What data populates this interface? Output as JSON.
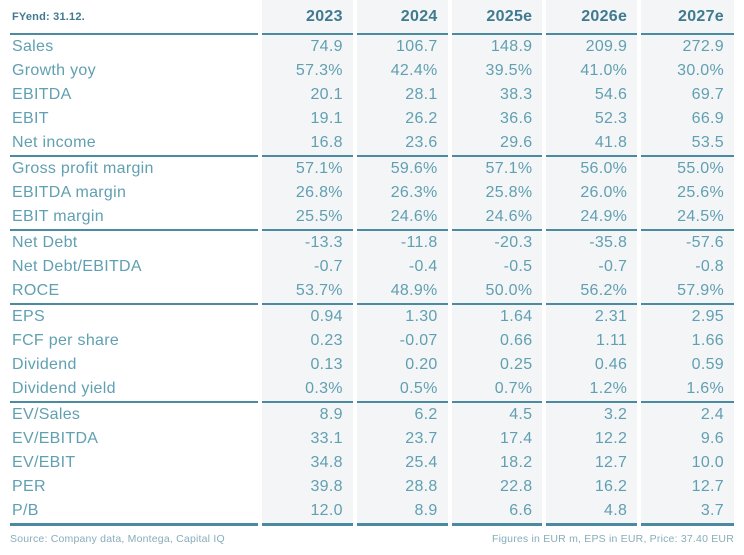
{
  "chart_data": {
    "type": "table",
    "corner_label": "FYend: 31.12.",
    "columns": [
      "2023",
      "2024",
      "2025e",
      "2026e",
      "2027e"
    ],
    "sections": [
      {
        "rows": [
          {
            "label": "Sales",
            "values": [
              "74.9",
              "106.7",
              "148.9",
              "209.9",
              "272.9"
            ]
          },
          {
            "label": "Growth yoy",
            "values": [
              "57.3%",
              "42.4%",
              "39.5%",
              "41.0%",
              "30.0%"
            ]
          },
          {
            "label": "EBITDA",
            "values": [
              "20.1",
              "28.1",
              "38.3",
              "54.6",
              "69.7"
            ]
          },
          {
            "label": "EBIT",
            "values": [
              "19.1",
              "26.2",
              "36.6",
              "52.3",
              "66.9"
            ]
          },
          {
            "label": "Net income",
            "values": [
              "16.8",
              "23.6",
              "29.6",
              "41.8",
              "53.5"
            ]
          }
        ]
      },
      {
        "rows": [
          {
            "label": "Gross profit margin",
            "values": [
              "57.1%",
              "59.6%",
              "57.1%",
              "56.0%",
              "55.0%"
            ]
          },
          {
            "label": "EBITDA margin",
            "values": [
              "26.8%",
              "26.3%",
              "25.8%",
              "26.0%",
              "25.6%"
            ]
          },
          {
            "label": "EBIT margin",
            "values": [
              "25.5%",
              "24.6%",
              "24.6%",
              "24.9%",
              "24.5%"
            ]
          }
        ]
      },
      {
        "rows": [
          {
            "label": "Net Debt",
            "values": [
              "-13.3",
              "-11.8",
              "-20.3",
              "-35.8",
              "-57.6"
            ]
          },
          {
            "label": "Net Debt/EBITDA",
            "values": [
              "-0.7",
              "-0.4",
              "-0.5",
              "-0.7",
              "-0.8"
            ]
          },
          {
            "label": "ROCE",
            "values": [
              "53.7%",
              "48.9%",
              "50.0%",
              "56.2%",
              "57.9%"
            ]
          }
        ]
      },
      {
        "rows": [
          {
            "label": "EPS",
            "values": [
              "0.94",
              "1.30",
              "1.64",
              "2.31",
              "2.95"
            ]
          },
          {
            "label": "FCF per share",
            "values": [
              "0.23",
              "-0.07",
              "0.66",
              "1.11",
              "1.66"
            ]
          },
          {
            "label": "Dividend",
            "values": [
              "0.13",
              "0.20",
              "0.25",
              "0.46",
              "0.59"
            ]
          },
          {
            "label": "Dividend yield",
            "values": [
              "0.3%",
              "0.5%",
              "0.7%",
              "1.2%",
              "1.6%"
            ]
          }
        ]
      },
      {
        "rows": [
          {
            "label": "EV/Sales",
            "values": [
              "8.9",
              "6.2",
              "4.5",
              "3.2",
              "2.4"
            ]
          },
          {
            "label": "EV/EBITDA",
            "values": [
              "33.1",
              "23.7",
              "17.4",
              "12.2",
              "9.6"
            ]
          },
          {
            "label": "EV/EBIT",
            "values": [
              "34.8",
              "25.4",
              "18.2",
              "12.7",
              "10.0"
            ]
          },
          {
            "label": "PER",
            "values": [
              "39.8",
              "28.8",
              "22.8",
              "16.2",
              "12.7"
            ]
          },
          {
            "label": "P/B",
            "values": [
              "12.0",
              "8.9",
              "6.6",
              "4.8",
              "3.7"
            ]
          }
        ]
      }
    ]
  },
  "footer": {
    "source": "Source: Company data, Montega, Capital IQ",
    "note": "Figures in EUR m, EPS in EUR, Price: 37.40 EUR"
  },
  "colors": {
    "accent_dark": "#3f7a90",
    "accent": "#60a0b2",
    "rule": "#4b8ba1",
    "stripe": "#f4f5f6",
    "footer_text": "#87adbb",
    "background": "#ffffff"
  }
}
